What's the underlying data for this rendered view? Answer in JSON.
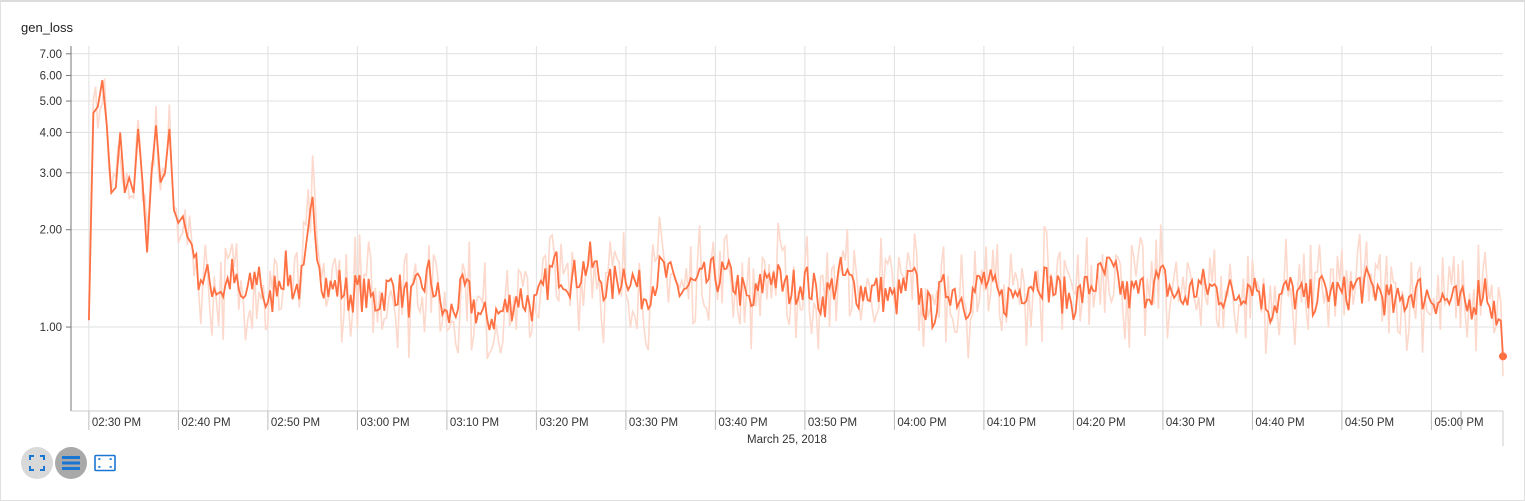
{
  "card": {
    "title": "gen_loss"
  },
  "toolbar": [
    {
      "name": "fullscreen-toggle-button",
      "icon": "expand-icon"
    },
    {
      "name": "log-scale-toggle-button",
      "icon": "lines-icon"
    },
    {
      "name": "fit-domain-button",
      "icon": "fit-to-data-icon"
    }
  ],
  "chart_data": {
    "type": "line",
    "title": "gen_loss",
    "xlabel": "March 25, 2018",
    "ylabel": "",
    "y_scale": "log",
    "ylim": [
      0.55,
      7.4
    ],
    "xlim": [
      "02:28 PM",
      "05:08 PM"
    ],
    "y_ticks": [
      "1.00",
      "2.00",
      "3.00",
      "4.00",
      "5.00",
      "6.00",
      "7.00"
    ],
    "x_ticks": [
      "02:30 PM",
      "02:40 PM",
      "02:50 PM",
      "03:00 PM",
      "03:10 PM",
      "03:20 PM",
      "03:30 PM",
      "03:40 PM",
      "03:50 PM",
      "04:00 PM",
      "04:10 PM",
      "04:20 PM",
      "04:30 PM",
      "04:40 PM",
      "04:50 PM",
      "05:00 PM"
    ],
    "grid": true,
    "colors": {
      "smoothed": "#ff7043",
      "raw": "#fcd9cc"
    },
    "series": [
      {
        "x_minutes_since_0230": [
          0,
          0.5,
          1,
          1.5,
          2,
          2.5,
          3,
          3.5,
          4,
          4.5,
          5,
          5.5,
          6,
          6.5,
          7,
          7.5,
          8,
          8.5,
          9,
          9.5,
          10,
          10.5,
          11,
          11.5,
          12,
          13,
          14,
          15,
          16,
          17,
          18,
          19,
          20,
          21,
          22,
          23,
          24,
          25,
          26,
          27,
          28,
          29,
          30,
          32,
          34,
          36,
          38,
          40,
          42,
          44,
          46,
          48,
          50,
          52,
          54,
          56,
          58,
          60,
          62,
          64,
          66,
          68,
          70,
          72,
          74,
          76,
          78,
          80,
          82,
          84,
          86,
          88,
          90,
          92,
          94,
          96,
          98,
          100,
          102,
          104,
          106,
          108,
          110,
          112,
          114,
          116,
          118,
          120,
          122,
          124,
          126,
          128,
          130,
          132,
          134,
          136,
          138,
          140,
          142,
          144,
          146,
          148,
          150,
          152,
          154,
          156,
          158
        ],
        "values": [
          1.05,
          4.6,
          4.8,
          5.8,
          4.2,
          2.6,
          2.7,
          4.0,
          2.6,
          2.9,
          2.6,
          4.1,
          2.8,
          1.7,
          3.0,
          4.2,
          2.8,
          3.0,
          4.1,
          2.3,
          2.1,
          2.2,
          1.9,
          1.8,
          1.5,
          1.4,
          1.35,
          1.3,
          1.45,
          1.2,
          1.3,
          1.5,
          1.1,
          1.4,
          1.5,
          1.3,
          1.4,
          2.35,
          1.45,
          1.3,
          1.35,
          1.25,
          1.3,
          1.2,
          1.35,
          1.2,
          1.45,
          1.05,
          1.3,
          1.05,
          1.1,
          1.25,
          1.15,
          1.55,
          1.4,
          1.6,
          1.3,
          1.5,
          1.25,
          1.5,
          1.3,
          1.35,
          1.45,
          1.4,
          1.15,
          1.5,
          1.3,
          1.4,
          1.2,
          1.45,
          1.3,
          1.3,
          1.2,
          1.4,
          1.1,
          1.35,
          1.2,
          1.4,
          1.2,
          1.3,
          1.45,
          1.3,
          1.2,
          1.35,
          1.5,
          1.25,
          1.3,
          1.4,
          1.2,
          1.35,
          1.3,
          1.25,
          1.4,
          1.15,
          1.3,
          1.2,
          1.3,
          1.25,
          1.35,
          1.3,
          1.15,
          1.3,
          1.25,
          1.2,
          1.15,
          1.35,
          0.93
        ]
      }
    ]
  }
}
